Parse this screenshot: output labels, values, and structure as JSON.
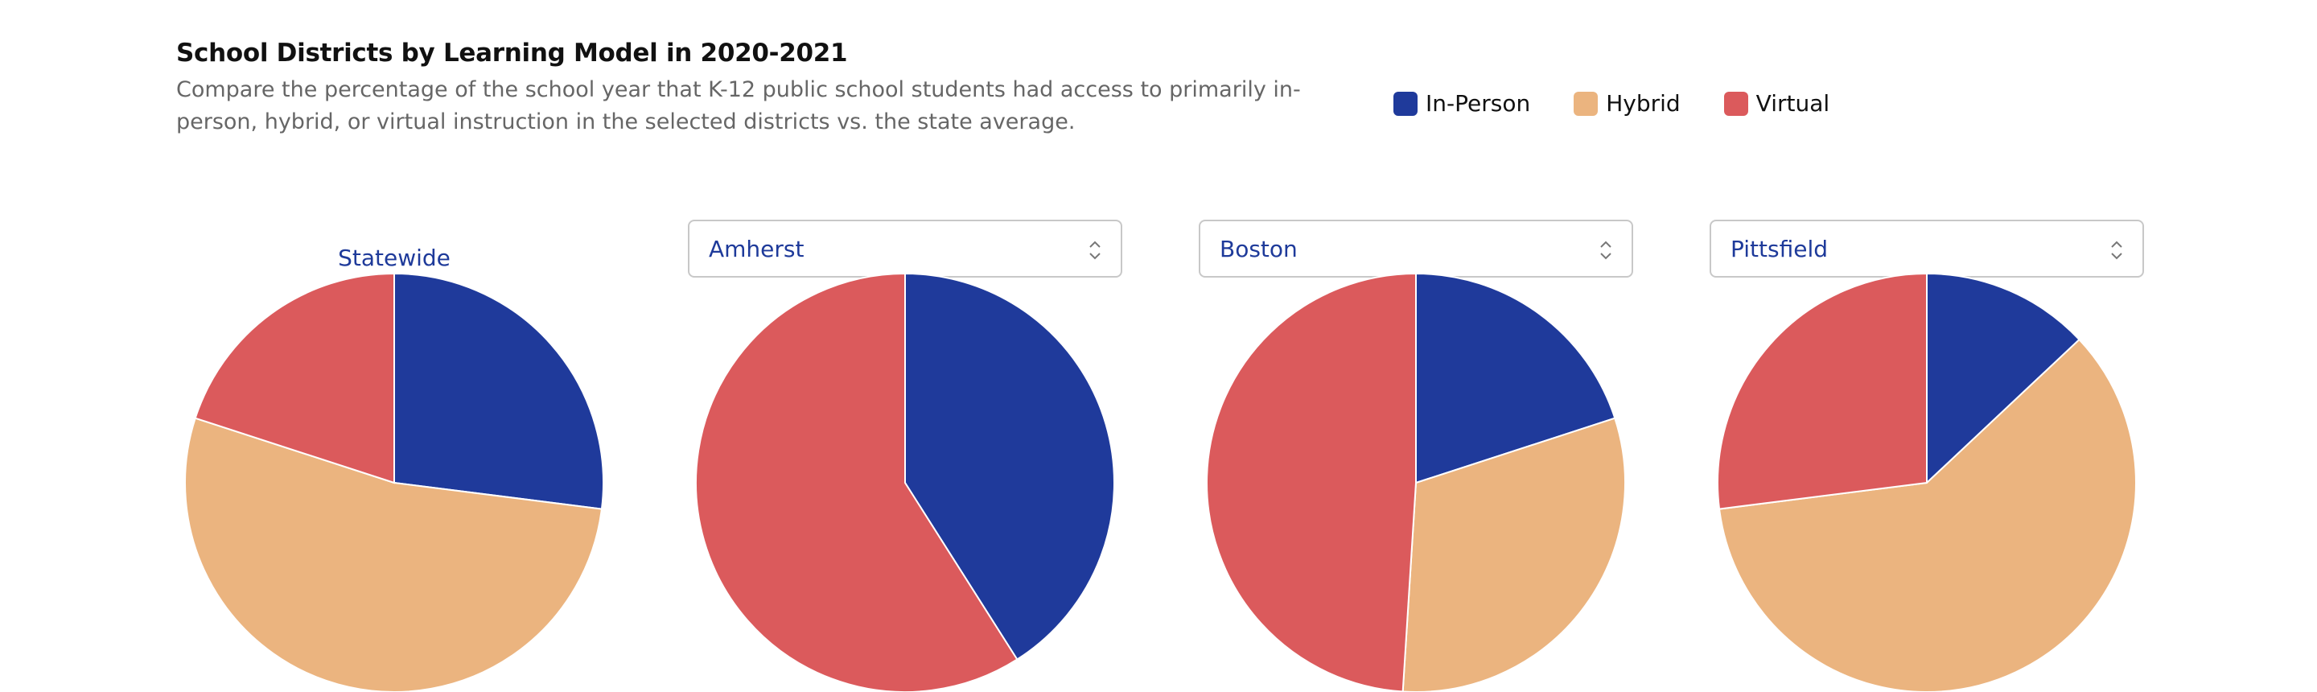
{
  "header": {
    "title": "School Districts by Learning Model in 2020-2021",
    "subtitle": "Compare the percentage of the school year that K-12 public school students had access to primarily in-person, hybrid, or virtual instruction in the selected districts vs. the state average."
  },
  "legend": [
    {
      "label": "In-Person",
      "color": "#1f3a9b"
    },
    {
      "label": "Hybrid",
      "color": "#ebb47f"
    },
    {
      "label": "Virtual",
      "color": "#db5a5c"
    }
  ],
  "chart_data": [
    {
      "type": "pie",
      "label": "Statewide",
      "categories": [
        "In-Person",
        "Hybrid",
        "Virtual"
      ],
      "values": [
        27,
        53,
        20
      ]
    },
    {
      "type": "pie",
      "label": "Amherst",
      "categories": [
        "In-Person",
        "Hybrid",
        "Virtual"
      ],
      "values": [
        41,
        0,
        59
      ]
    },
    {
      "type": "pie",
      "label": "Boston",
      "categories": [
        "In-Person",
        "Hybrid",
        "Virtual"
      ],
      "values": [
        20,
        31,
        49
      ]
    },
    {
      "type": "pie",
      "label": "Pittsfield",
      "categories": [
        "In-Person",
        "Hybrid",
        "Virtual"
      ],
      "values": [
        13,
        60,
        27
      ]
    }
  ]
}
